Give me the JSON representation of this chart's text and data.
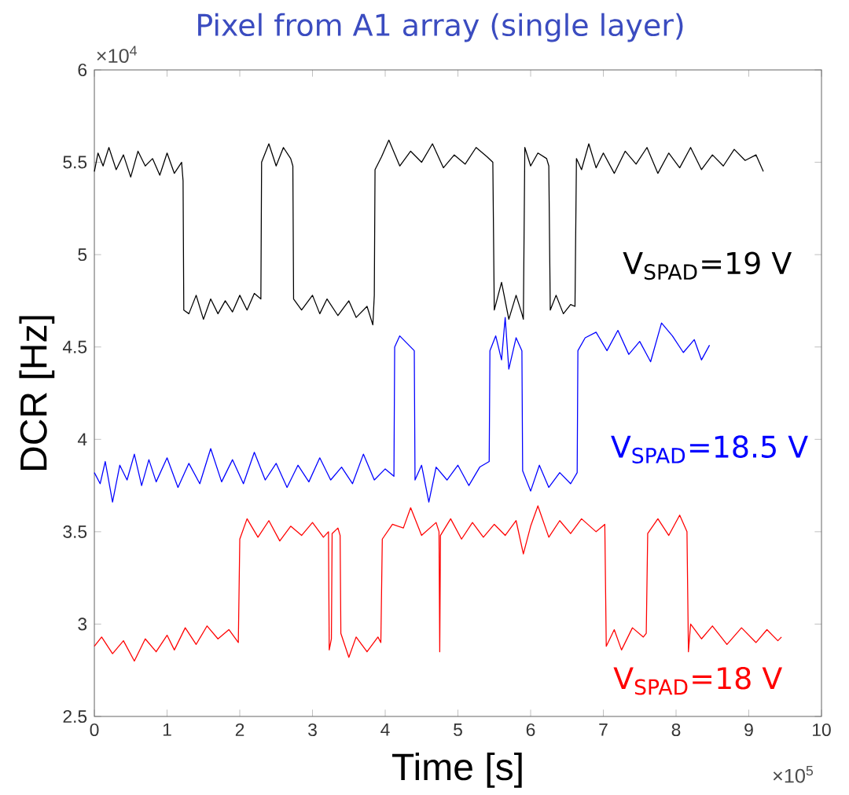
{
  "chart_data": {
    "type": "line",
    "title": "Pixel from A1 array (single layer)",
    "xlabel": "Time [s]",
    "ylabel": "DCR [Hz]",
    "annotations": [
      "×10$^{4}$",
      "×10$^{5}$"
    ],
    "xlim": [
      0,
      10
    ],
    "ylim": [
      2.5,
      6
    ],
    "marker": "none",
    "xticks": [
      0,
      1,
      2,
      3,
      4,
      5,
      6,
      7,
      8,
      9,
      10
    ],
    "yticks": [
      2.5,
      3,
      3.5,
      4,
      4.5,
      5,
      5.5,
      6
    ],
    "series": [
      {
        "name": "V$_{SPAD}$=19 V",
        "color": "#000000",
        "x": [
          0,
          0.05,
          0.12,
          0.2,
          0.3,
          0.4,
          0.5,
          0.6,
          0.7,
          0.8,
          0.9,
          1.0,
          1.1,
          1.2,
          1.22,
          1.23,
          1.3,
          1.4,
          1.5,
          1.6,
          1.7,
          1.8,
          1.9,
          2.0,
          2.1,
          2.2,
          2.29,
          2.3,
          2.4,
          2.5,
          2.6,
          2.7,
          2.73,
          2.74,
          2.85,
          3.0,
          3.1,
          3.2,
          3.35,
          3.5,
          3.6,
          3.75,
          3.83,
          3.85,
          3.86,
          3.95,
          4.05,
          4.2,
          4.35,
          4.5,
          4.65,
          4.8,
          4.95,
          5.1,
          5.25,
          5.4,
          5.48,
          5.5,
          5.6,
          5.7,
          5.8,
          5.88,
          5.9,
          5.92,
          6.0,
          6.1,
          6.22,
          6.25,
          6.27,
          6.35,
          6.45,
          6.55,
          6.61,
          6.63,
          6.7,
          6.8,
          6.9,
          7.0,
          7.15,
          7.3,
          7.45,
          7.6,
          7.75,
          7.9,
          8.05,
          8.2,
          8.35,
          8.5,
          8.65,
          8.8,
          8.95,
          9.1,
          9.2
        ],
        "values": [
          5.45,
          5.55,
          5.48,
          5.58,
          5.46,
          5.54,
          5.42,
          5.56,
          5.48,
          5.52,
          5.43,
          5.55,
          5.44,
          5.5,
          5.4,
          4.7,
          4.68,
          4.78,
          4.65,
          4.76,
          4.68,
          4.75,
          4.69,
          4.78,
          4.7,
          4.79,
          4.76,
          5.5,
          5.6,
          5.48,
          5.58,
          5.52,
          5.48,
          4.76,
          4.7,
          4.78,
          4.68,
          4.76,
          4.67,
          4.75,
          4.66,
          4.72,
          4.62,
          4.78,
          5.46,
          5.53,
          5.62,
          5.48,
          5.56,
          5.5,
          5.6,
          5.47,
          5.54,
          5.49,
          5.58,
          5.53,
          5.5,
          4.7,
          4.85,
          4.65,
          4.78,
          4.68,
          4.65,
          5.58,
          5.48,
          5.55,
          5.52,
          5.48,
          4.7,
          4.78,
          4.68,
          4.73,
          4.72,
          5.52,
          5.46,
          5.6,
          5.47,
          5.55,
          5.44,
          5.56,
          5.49,
          5.58,
          5.44,
          5.55,
          5.47,
          5.58,
          5.46,
          5.54,
          5.48,
          5.57,
          5.51,
          5.54,
          5.45
        ]
      },
      {
        "name": "V$_{SPAD}$=18.5 V",
        "color": "#0000ff",
        "x": [
          0,
          0.08,
          0.15,
          0.25,
          0.35,
          0.45,
          0.55,
          0.65,
          0.75,
          0.85,
          1.0,
          1.15,
          1.3,
          1.45,
          1.6,
          1.75,
          1.9,
          2.05,
          2.2,
          2.35,
          2.5,
          2.65,
          2.8,
          2.95,
          3.1,
          3.25,
          3.4,
          3.55,
          3.7,
          3.85,
          4.0,
          4.12,
          4.13,
          4.2,
          4.3,
          4.4,
          4.41,
          4.5,
          4.6,
          4.7,
          4.85,
          5.0,
          5.15,
          5.3,
          5.43,
          5.44,
          5.52,
          5.6,
          5.65,
          5.7,
          5.8,
          5.88,
          5.89,
          6.0,
          6.12,
          6.25,
          6.4,
          6.55,
          6.64,
          6.65,
          6.75,
          6.9,
          7.05,
          7.2,
          7.35,
          7.5,
          7.65,
          7.8,
          7.95,
          8.1,
          8.25,
          8.35,
          8.46
        ],
        "values": [
          3.82,
          3.76,
          3.88,
          3.66,
          3.86,
          3.78,
          3.92,
          3.75,
          3.89,
          3.77,
          3.9,
          3.74,
          3.87,
          3.76,
          3.95,
          3.77,
          3.89,
          3.76,
          3.93,
          3.78,
          3.87,
          3.74,
          3.86,
          3.77,
          3.9,
          3.78,
          3.85,
          3.76,
          3.92,
          3.78,
          3.84,
          3.8,
          4.5,
          4.56,
          4.52,
          4.48,
          3.78,
          3.86,
          3.66,
          3.85,
          3.78,
          3.86,
          3.75,
          3.85,
          3.88,
          4.48,
          4.56,
          4.43,
          4.66,
          4.38,
          4.55,
          4.48,
          3.83,
          3.72,
          3.86,
          3.74,
          3.82,
          3.76,
          3.82,
          4.48,
          4.55,
          4.58,
          4.48,
          4.59,
          4.46,
          4.53,
          4.42,
          4.63,
          4.56,
          4.47,
          4.54,
          4.43,
          4.51
        ]
      },
      {
        "name": "V$_{SPAD}$=18 V",
        "color": "#ff0000",
        "x": [
          0,
          0.1,
          0.25,
          0.4,
          0.55,
          0.7,
          0.85,
          1.0,
          1.1,
          1.25,
          1.4,
          1.55,
          1.7,
          1.85,
          1.98,
          2.0,
          2.1,
          2.25,
          2.4,
          2.55,
          2.7,
          2.85,
          3.0,
          3.15,
          3.22,
          3.23,
          3.26,
          3.27,
          3.35,
          3.38,
          3.39,
          3.5,
          3.6,
          3.75,
          3.9,
          3.94,
          3.96,
          4.1,
          4.25,
          4.35,
          4.5,
          4.7,
          4.74,
          4.75,
          4.76,
          4.9,
          5.05,
          5.2,
          5.35,
          5.5,
          5.65,
          5.8,
          5.9,
          6.0,
          6.1,
          6.25,
          6.4,
          6.55,
          6.7,
          6.9,
          7.02,
          7.04,
          7.15,
          7.25,
          7.4,
          7.55,
          7.59,
          7.61,
          7.75,
          7.9,
          8.05,
          8.15,
          8.17,
          8.2,
          8.35,
          8.5,
          8.7,
          8.9,
          9.1,
          9.25,
          9.4,
          9.45
        ],
        "values": [
          2.88,
          2.93,
          2.84,
          2.91,
          2.8,
          2.92,
          2.85,
          2.94,
          2.86,
          2.98,
          2.89,
          2.99,
          2.92,
          2.97,
          2.9,
          3.46,
          3.57,
          3.47,
          3.56,
          3.45,
          3.53,
          3.48,
          3.55,
          3.47,
          3.5,
          2.86,
          2.92,
          3.49,
          3.52,
          3.48,
          2.95,
          2.82,
          2.93,
          2.85,
          2.93,
          2.9,
          3.46,
          3.54,
          3.52,
          3.63,
          3.48,
          3.55,
          3.5,
          2.85,
          3.48,
          3.57,
          3.46,
          3.55,
          3.47,
          3.54,
          3.48,
          3.56,
          3.38,
          3.53,
          3.64,
          3.47,
          3.56,
          3.49,
          3.57,
          3.5,
          3.54,
          2.88,
          2.97,
          2.86,
          2.98,
          2.93,
          2.95,
          3.49,
          3.57,
          3.48,
          3.59,
          3.5,
          2.85,
          3.0,
          2.92,
          2.99,
          2.89,
          2.98,
          2.9,
          2.97,
          2.91,
          2.93
        ]
      }
    ]
  }
}
